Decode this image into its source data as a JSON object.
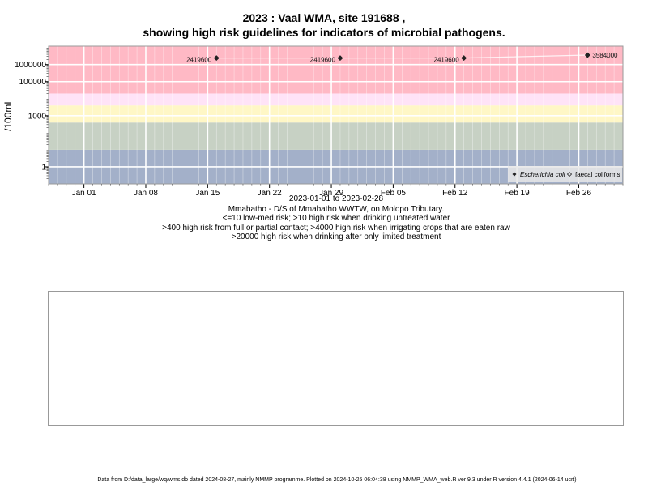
{
  "title_line1": "2023 : Vaal WMA, site 191688 ,",
  "title_line2": "showing high risk guidelines for indicators of microbial pathogens.",
  "subtitle_lines": [
    "2023-01-01 to 2023-02-28",
    "Mmabatho - D/S of Mmabatho WWTW, on Molopo Tributary.",
    "<=10 low-med risk; >10 high risk when drinking untreated water",
    ">400 high risk from full or partial contact; >4000 high risk when irrigating crops that are eaten raw",
    ">20000 high risk when drinking after only limited treatment"
  ],
  "footer": "Data from D:/data_large/wq/wms.db dated 2024-08-27, mainly NMMP programme. Plotted on 2024-10-25 06:04:38 using NMMP_WMA_web.R ver 9.3 under R version 4.4.1 (2024-06-14 ucrt)",
  "chart_data": {
    "type": "scatter",
    "ylabel": "/100mL",
    "y_scale": "log",
    "ylim": [
      0.1,
      12000000
    ],
    "xlim": [
      "2022-12-28",
      "2023-03-03"
    ],
    "y_ticks": [
      1,
      1000,
      100000,
      1000000
    ],
    "y_tick_labels": [
      "1",
      "1000",
      "100000",
      "1000000"
    ],
    "x_ticks": [
      "2023-01-01",
      "2023-01-08",
      "2023-01-15",
      "2023-01-22",
      "2023-01-29",
      "2023-02-05",
      "2023-02-12",
      "2023-02-19",
      "2023-02-26"
    ],
    "x_tick_labels": [
      "Jan 01",
      "Jan 08",
      "Jan 15",
      "Jan 22",
      "Jan 29",
      "Feb 05",
      "Feb 12",
      "Feb 19",
      "Feb 26"
    ],
    "grid": true,
    "risk_bands": [
      {
        "from": 0.1,
        "to": 10,
        "color": "#a3b0c9"
      },
      {
        "from": 10,
        "to": 400,
        "color": "#c7d1c4"
      },
      {
        "from": 400,
        "to": 4000,
        "color": "#fff7c6"
      },
      {
        "from": 4000,
        "to": 20000,
        "color": "#ffe3f7"
      },
      {
        "from": 20000,
        "to": 12000000,
        "color": "#ffb9c5"
      }
    ],
    "series": [
      {
        "name": "Escherichia coli",
        "marker": "filled-diamond",
        "color": "#222222",
        "points": [
          {
            "x": "2023-01-16",
            "y": 2419600,
            "label": "2419600"
          },
          {
            "x": "2023-01-30",
            "y": 2419600,
            "label": "2419600"
          },
          {
            "x": "2023-02-13",
            "y": 2419600,
            "label": "2419600"
          },
          {
            "x": "2023-02-27",
            "y": 3584000,
            "label": "3584000"
          }
        ]
      },
      {
        "name": "faecal coliforms",
        "marker": "open-diamond",
        "color": "#222222",
        "points": []
      }
    ],
    "legend_position": "bottom-right"
  }
}
